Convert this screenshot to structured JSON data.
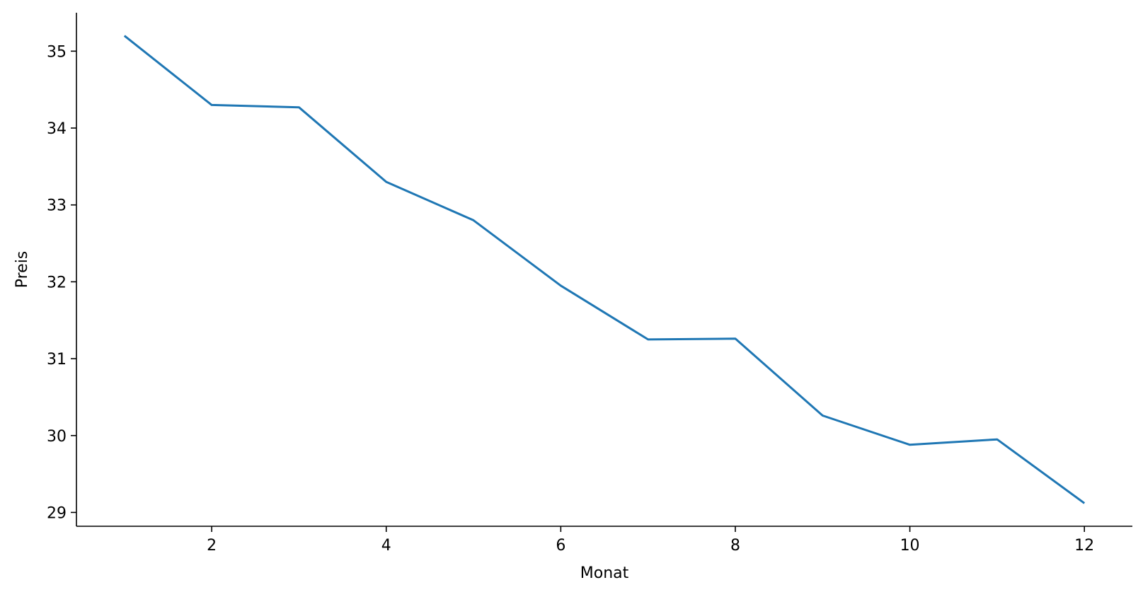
{
  "chart_data": {
    "type": "line",
    "title": "",
    "xlabel": "Monat",
    "ylabel": "Preis",
    "x": [
      1,
      2,
      3,
      4,
      5,
      6,
      7,
      8,
      9,
      10,
      11,
      12
    ],
    "series": [
      {
        "values": [
          35.2,
          34.3,
          34.27,
          33.3,
          32.8,
          31.95,
          31.25,
          31.26,
          30.26,
          29.88,
          29.95,
          29.12
        ],
        "color": "#1f77b4"
      }
    ],
    "xlim": [
      0.45,
      12.55
    ],
    "ylim": [
      28.82,
      35.5
    ],
    "xticks": [
      2,
      4,
      6,
      8,
      10,
      12
    ],
    "xtick_labels": [
      "2",
      "4",
      "6",
      "8",
      "10",
      "12"
    ],
    "yticks": [
      29,
      30,
      31,
      32,
      33,
      34,
      35
    ],
    "ytick_labels": [
      "29",
      "30",
      "31",
      "32",
      "33",
      "34",
      "35"
    ],
    "grid": false,
    "legend": "none"
  }
}
